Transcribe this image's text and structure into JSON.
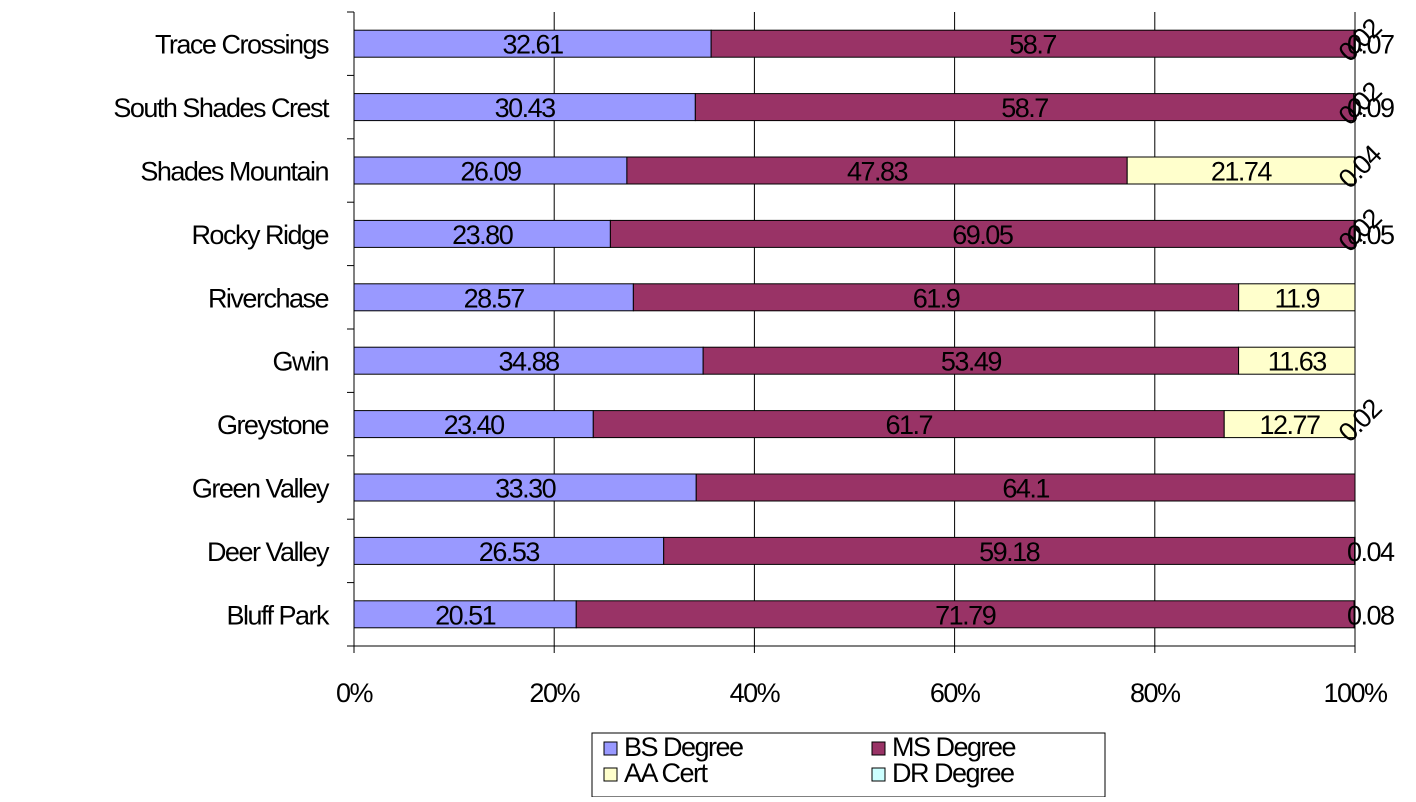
{
  "chart_data": {
    "type": "bar",
    "orientation": "horizontal",
    "stacked": "percent",
    "categories": [
      "Bluff Park",
      "Deer Valley",
      "Green Valley",
      "Greystone",
      "Gwin",
      "Riverchase",
      "Rocky Ridge",
      "Shades Mountain",
      "South Shades Crest",
      "Trace Crossings"
    ],
    "series": [
      {
        "name": "BS Degree",
        "color": "#9999ff",
        "values": [
          20.51,
          26.53,
          33.3,
          23.4,
          34.88,
          28.57,
          23.8,
          26.09,
          30.43,
          32.61
        ],
        "labels": [
          "20.51",
          "26.53",
          "33.30",
          "23.40",
          "34.88",
          "28.57",
          "23.80",
          "26.09",
          "30.43",
          "32.61"
        ]
      },
      {
        "name": "MS Degree",
        "color": "#993366",
        "values": [
          71.79,
          59.18,
          64.1,
          61.7,
          53.49,
          61.9,
          69.05,
          47.83,
          58.7,
          58.7
        ],
        "labels": [
          "71.79",
          "59.18",
          "64.1",
          "61.7",
          "53.49",
          "61.9",
          "69.05",
          "47.83",
          "58.7",
          "58.7"
        ]
      },
      {
        "name": "AA Cert",
        "color": "#ffffcc",
        "values": [
          0.08,
          0.04,
          0,
          12.77,
          11.63,
          11.9,
          0.05,
          21.74,
          0.09,
          0.07
        ],
        "labels": [
          "0.08",
          "0.04",
          "",
          "12.77",
          "11.63",
          "11.9",
          "0.05",
          "21.74",
          "0.09",
          "0.07"
        ]
      },
      {
        "name": "DR Degree",
        "color": "#ccffff",
        "values": [
          0,
          0,
          0,
          0.02,
          0,
          0,
          0.02,
          0.04,
          0.02,
          0.02
        ],
        "labels": [
          "",
          "",
          "",
          "0.02",
          "",
          "",
          "0.02",
          "0.04",
          "0.02",
          "0.02"
        ]
      }
    ],
    "xlim": [
      0,
      100
    ],
    "x_ticks": [
      "0%",
      "20%",
      "40%",
      "60%",
      "80%",
      "100%"
    ],
    "grid": "vertical",
    "legend": "bottom"
  }
}
